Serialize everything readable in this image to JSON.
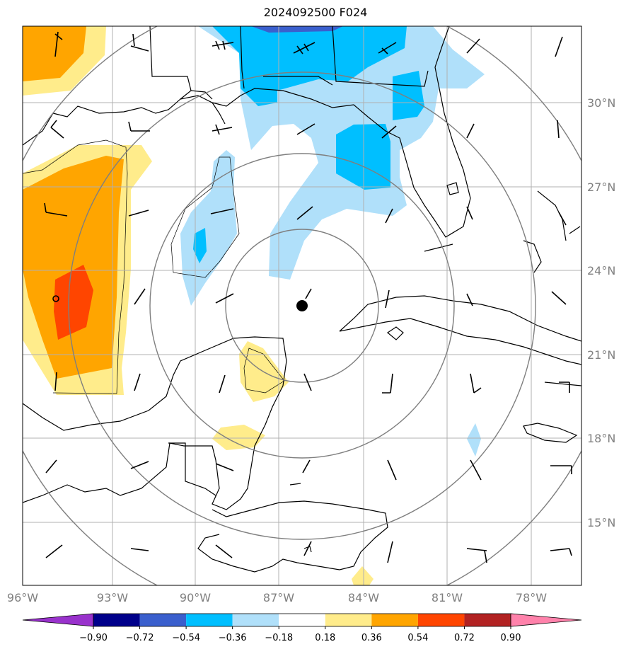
{
  "chart_data": {
    "type": "map-contour",
    "title": "2024092500 F024",
    "xlim": [
      -96,
      -77
    ],
    "ylim": [
      13,
      32.5
    ],
    "x_ticks": [
      -96,
      -93,
      -90,
      -87,
      -84,
      -81,
      -78
    ],
    "x_tick_labels": [
      "96°W",
      "93°W",
      "90°W",
      "87°W",
      "84°W",
      "81°W",
      "78°W"
    ],
    "y_ticks": [
      15,
      18,
      21,
      24,
      27,
      30
    ],
    "y_tick_labels": [
      "15°N",
      "18°N",
      "21°N",
      "24°N",
      "27°N",
      "30°N"
    ],
    "grid": true,
    "storm_center": {
      "lon": -86.2,
      "lat": 22.7
    },
    "range_rings_deg": [
      2.7,
      5.5,
      8.5
    ],
    "colorbar": {
      "levels": [
        -0.9,
        -0.72,
        -0.54,
        -0.36,
        -0.18,
        0.18,
        0.36,
        0.54,
        0.72,
        0.9
      ],
      "labels": [
        "−0.90",
        "−0.72",
        "−0.54",
        "−0.36",
        "−0.18",
        "0.18",
        "0.36",
        "0.54",
        "0.72",
        "0.90"
      ],
      "colors": [
        "#9932cc",
        "#00008b",
        "#3a5fcd",
        "#00bfff",
        "#b0e0fa",
        "#ffffff",
        "#ffec8b",
        "#ffa500",
        "#ff4500",
        "#b22222",
        "#ff82ab"
      ]
    },
    "filled_regions": [
      {
        "value_range": [
          0.18,
          0.36
        ],
        "area": "western Gulf lobe"
      },
      {
        "value_range": [
          0.36,
          0.54
        ],
        "area": "western Gulf"
      },
      {
        "value_range": [
          0.54,
          0.72
        ],
        "area": "near 95W 23N"
      },
      {
        "value_range": [
          -0.54,
          -0.36
        ],
        "area": "northeastern Gulf / Georgia"
      },
      {
        "value_range": [
          -0.36,
          -0.18
        ],
        "area": "eastern Gulf tongue"
      }
    ]
  }
}
